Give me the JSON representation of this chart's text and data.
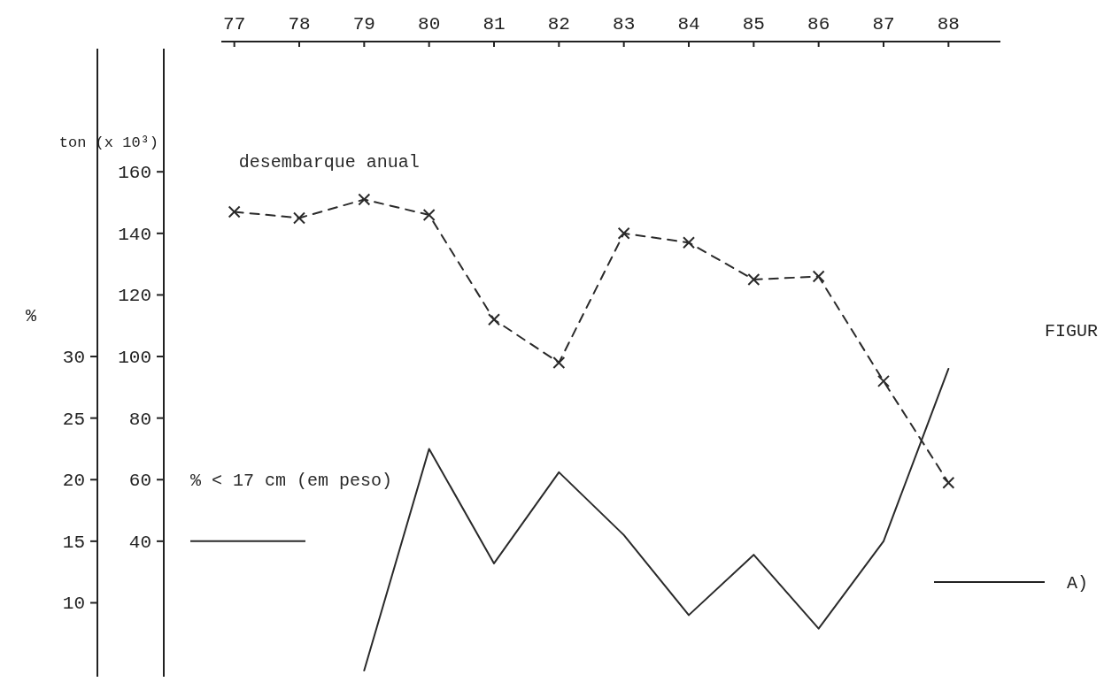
{
  "chart_data": {
    "type": "line",
    "x": [
      77,
      78,
      79,
      80,
      81,
      82,
      83,
      84,
      85,
      86,
      87,
      88
    ],
    "xlim": [
      76.8,
      88.8
    ],
    "xticks": [
      77,
      78,
      79,
      80,
      81,
      82,
      83,
      84,
      85,
      86,
      87,
      88
    ],
    "ylabel": "ton (x 10³)",
    "y2label": "%",
    "ylim": [
      -4,
      200
    ],
    "yticks": [
      40,
      60,
      80,
      100,
      120,
      140,
      160
    ],
    "y2lim": [
      4,
      55
    ],
    "y2ticks": [
      10,
      15,
      20,
      25,
      30
    ],
    "series": [
      {
        "name": "desembarque anual",
        "color": "#2a2a2a",
        "line_style": "dashed",
        "marker": "cross",
        "values": [
          147,
          145,
          151,
          146,
          112,
          98,
          140,
          137,
          125,
          126,
          92,
          59
        ]
      },
      {
        "name": "% < 17 cm (em peso)",
        "color": "#2a2a2a",
        "axis": "y2",
        "line_style": "solid",
        "marker": "none",
        "values": [
          null,
          null,
          4.5,
          22.5,
          13.2,
          20.6,
          15.5,
          9,
          13.9,
          7.9,
          15,
          29
        ]
      }
    ],
    "legend": "left",
    "annotations": [
      "FIGUR",
      "A)"
    ]
  }
}
